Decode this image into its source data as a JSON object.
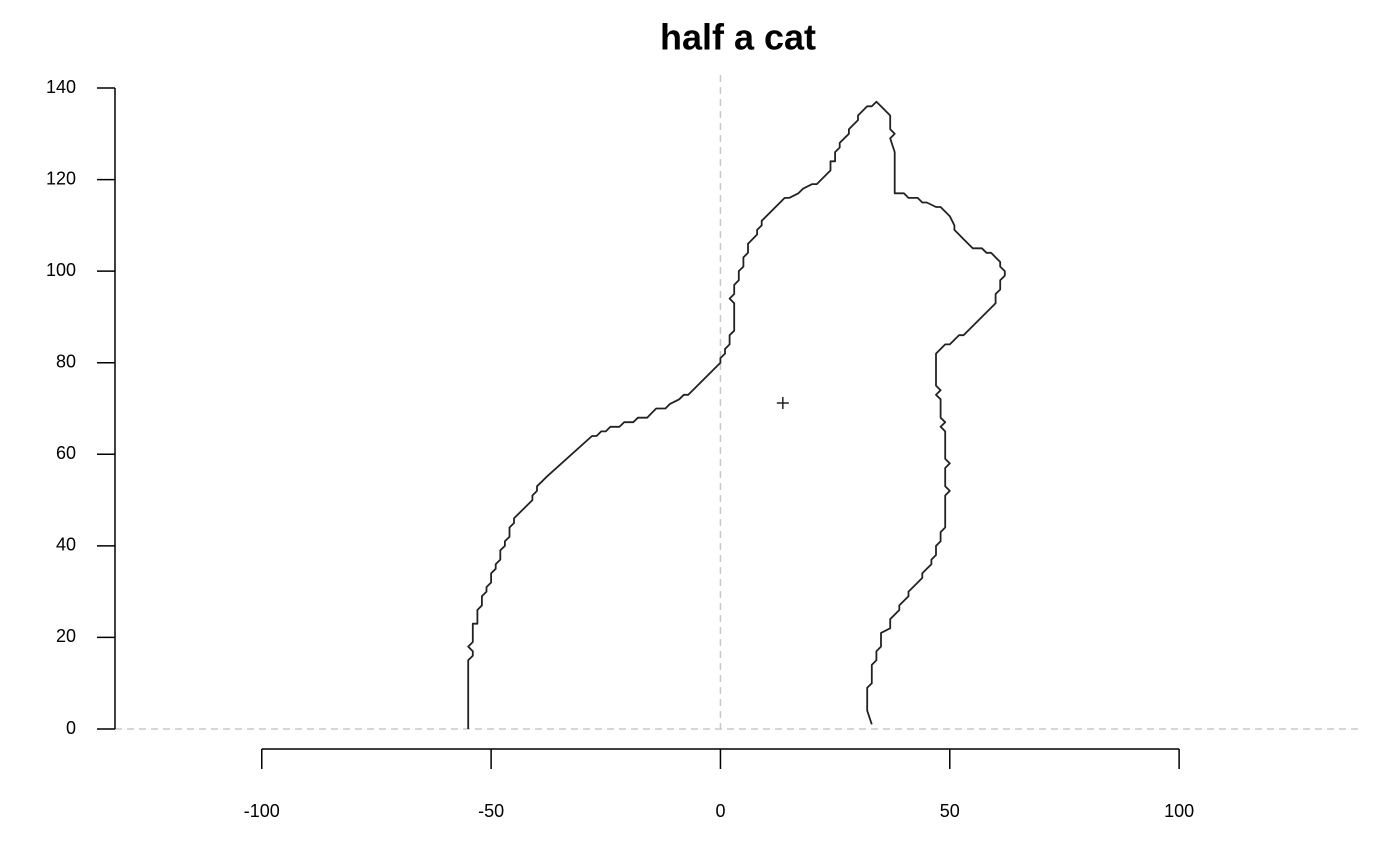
{
  "chart_data": {
    "type": "line",
    "title": "half a cat",
    "color": "#222222",
    "x": [
      -55,
      -55,
      -54,
      -54,
      -55,
      -54,
      -54,
      -53,
      -53,
      -52,
      -52,
      -51,
      -51,
      -50,
      -50,
      -49,
      -49,
      -48,
      -48,
      -47,
      -47,
      -46,
      -46,
      -45,
      -45,
      -44,
      -42,
      -41,
      -41,
      -40,
      -40,
      -39,
      -38,
      -28,
      -27,
      -26,
      -25,
      -24,
      -22,
      -21,
      -19,
      -18,
      -16,
      -15,
      -14,
      -12,
      -11,
      -9,
      -8,
      -7,
      0,
      0,
      1,
      1,
      2,
      2,
      3,
      3,
      2,
      3,
      3,
      4,
      4,
      5,
      5,
      6,
      6,
      7,
      8,
      8,
      9,
      9,
      14,
      15,
      17,
      18,
      20,
      21,
      23,
      24,
      24,
      25,
      25,
      26,
      26,
      28,
      28,
      30,
      30,
      31,
      32,
      33,
      34,
      35,
      37,
      37,
      38,
      37,
      38,
      38,
      40,
      41,
      43,
      44,
      45,
      47,
      48,
      49,
      50,
      51,
      51,
      52,
      53,
      55,
      57,
      58,
      59,
      61,
      61,
      62,
      62,
      61,
      61,
      60,
      60,
      53,
      52,
      50,
      49,
      47,
      47,
      48,
      47,
      48,
      48,
      49,
      48,
      49,
      49,
      50,
      49,
      49,
      50,
      49,
      49,
      48,
      48,
      47,
      47,
      46,
      46,
      45,
      44,
      44,
      42,
      41,
      41,
      39,
      39,
      37,
      37,
      35,
      35,
      34,
      34,
      33,
      33,
      32,
      32,
      33
    ],
    "values": [
      0,
      15,
      16,
      17,
      18,
      19,
      23,
      23,
      26,
      27,
      29,
      30,
      31,
      32,
      34,
      35,
      36,
      37,
      39,
      40,
      41,
      42,
      44,
      45,
      46,
      47,
      49,
      50,
      51,
      52,
      53,
      54,
      55,
      64,
      64,
      65,
      65,
      66,
      66,
      67,
      67,
      68,
      68,
      69,
      70,
      70,
      71,
      72,
      73,
      73,
      80,
      81,
      82,
      83,
      84,
      86,
      87,
      93,
      94,
      95,
      97,
      98,
      100,
      101,
      103,
      104,
      106,
      107,
      108,
      109,
      110,
      111,
      116,
      116,
      117,
      118,
      119,
      119,
      121,
      122,
      124,
      124,
      126,
      127,
      128,
      130,
      131,
      133,
      134,
      135,
      136,
      136,
      137,
      136,
      134,
      131,
      130,
      129,
      126,
      117,
      117,
      116,
      116,
      115,
      115,
      114,
      114,
      113,
      112,
      110,
      109,
      108,
      107,
      105,
      105,
      104,
      104,
      102,
      101,
      100,
      99,
      98,
      96,
      95,
      93,
      86,
      86,
      84,
      84,
      82,
      75,
      74,
      73,
      72,
      68,
      67,
      66,
      65,
      59,
      58,
      57,
      53,
      52,
      51,
      44,
      43,
      41,
      40,
      38,
      37,
      36,
      35,
      34,
      33,
      31,
      30,
      29,
      27,
      26,
      24,
      22,
      21,
      18,
      17,
      15,
      14,
      10,
      9,
      4,
      1
    ],
    "marker": {
      "x": 13.6,
      "y": 71.2
    },
    "hlines": [
      0
    ],
    "vlines": [
      0
    ],
    "reference_color": "#c8c8c8",
    "xlim": [
      -132,
      139
    ],
    "ylim": [
      0,
      140
    ],
    "xticks": [
      -100,
      -50,
      0,
      50,
      100
    ],
    "yticks": [
      0,
      20,
      40,
      60,
      80,
      100,
      120,
      140
    ]
  }
}
